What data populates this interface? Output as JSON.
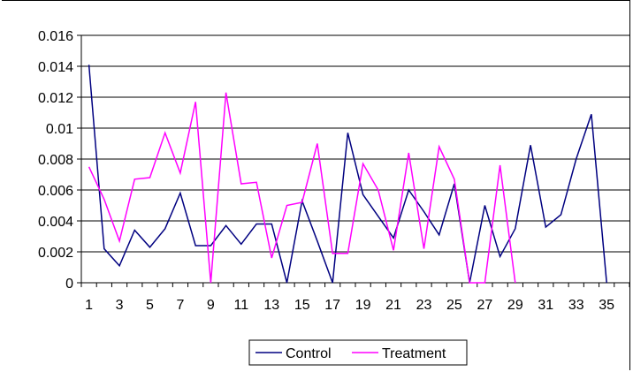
{
  "chart_data": {
    "type": "line",
    "title": "",
    "xlabel": "",
    "ylabel": "",
    "x": [
      1,
      2,
      3,
      4,
      5,
      6,
      7,
      8,
      9,
      10,
      11,
      12,
      13,
      14,
      15,
      16,
      17,
      18,
      19,
      20,
      21,
      22,
      23,
      24,
      25,
      26,
      27,
      28,
      29,
      30,
      31,
      32,
      33,
      34,
      35,
      36
    ],
    "x_tick_labels": [
      "1",
      "3",
      "5",
      "7",
      "9",
      "11",
      "13",
      "15",
      "17",
      "19",
      "21",
      "23",
      "25",
      "27",
      "29",
      "31",
      "33",
      "35"
    ],
    "y_tick_labels": [
      "0",
      "0.002",
      "0.004",
      "0.006",
      "0.008",
      "0.01",
      "0.012",
      "0.014",
      "0.016"
    ],
    "ylim": [
      0,
      0.016
    ],
    "grid": true,
    "legend_position": "bottom",
    "series": [
      {
        "name": "Control",
        "color": "#000080",
        "values": [
          0.0141,
          0.0022,
          0.0011,
          0.0034,
          0.0023,
          0.0035,
          0.0058,
          0.0024,
          0.0024,
          0.0037,
          0.0025,
          0.0038,
          0.0038,
          0.0,
          0.0053,
          0.0027,
          0.0,
          0.0097,
          0.0057,
          0.0043,
          0.0029,
          0.006,
          0.0046,
          0.0031,
          0.0064,
          0.0,
          0.005,
          0.0017,
          0.0035,
          0.0089,
          0.0036,
          0.0044,
          0.008,
          0.0109,
          0.0,
          null
        ]
      },
      {
        "name": "Treatment",
        "color": "#ff00ff",
        "values": [
          0.0075,
          0.0054,
          0.0027,
          0.0067,
          0.0068,
          0.0097,
          0.0071,
          0.0117,
          0.0,
          0.0123,
          0.0064,
          0.0065,
          0.0016,
          0.005,
          0.0052,
          0.009,
          0.0019,
          0.0019,
          0.0077,
          0.006,
          0.0021,
          0.0084,
          0.0022,
          0.0088,
          0.0067,
          0.0,
          0.0,
          0.0076,
          0.0,
          null,
          null,
          null,
          null,
          null,
          null,
          null
        ]
      }
    ]
  }
}
